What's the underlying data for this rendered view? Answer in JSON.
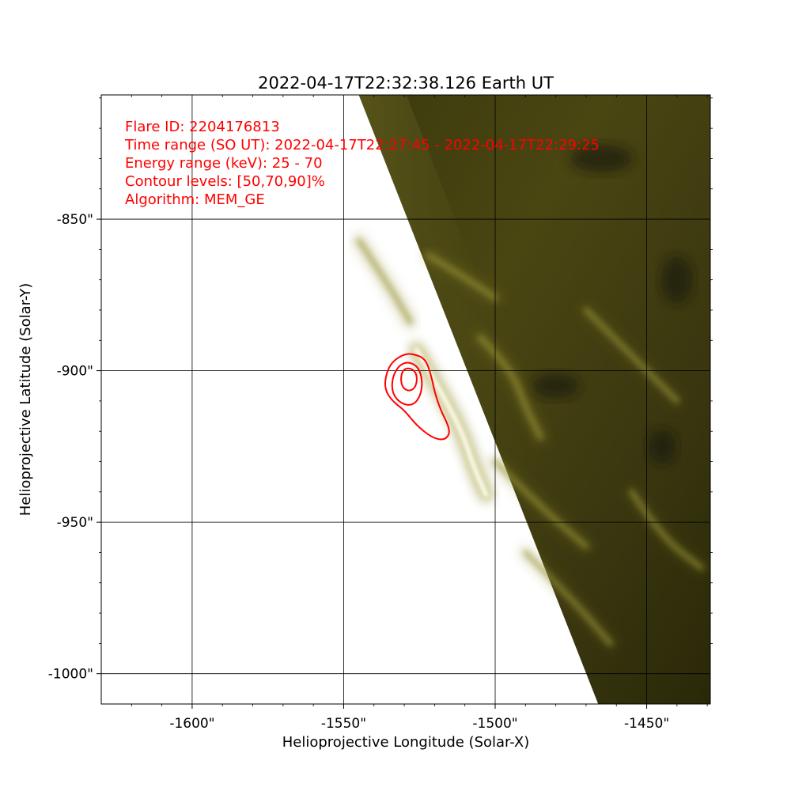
{
  "chart_data": {
    "type": "heatmap",
    "title": "2022-04-17T22:32:38.126   Earth UT",
    "xlabel": "Helioprojective Longitude (Solar-X)",
    "ylabel": "Helioprojective Latitude (Solar-Y)",
    "xlim": [
      -1630,
      -1429
    ],
    "ylim": [
      -1010,
      -809
    ],
    "x_ticks": [
      {
        "value": -1600,
        "label": "-1600\""
      },
      {
        "value": -1550,
        "label": "-1550\""
      },
      {
        "value": -1500,
        "label": "-1500\""
      },
      {
        "value": -1450,
        "label": "-1450\""
      }
    ],
    "y_ticks": [
      {
        "value": -850,
        "label": "-850\""
      },
      {
        "value": -900,
        "label": "-900\""
      },
      {
        "value": -950,
        "label": "-950\""
      },
      {
        "value": -1000,
        "label": "-1000\""
      }
    ],
    "grid": true,
    "colors": {
      "map_dark": "#1e1c06",
      "map_mid": "#6b6420",
      "map_bright": "#fffff0",
      "contour": "#ff0000",
      "annotation": "#ff0000",
      "grid": "#000000"
    },
    "limb_edge": [
      {
        "x": -1545.0,
        "y": -809
      },
      {
        "x": -1466.0,
        "y": -1010
      }
    ],
    "contours": [
      {
        "level": 50,
        "points": [
          [
            -1527,
            -894.5
          ],
          [
            -1523,
            -896
          ],
          [
            -1521,
            -902
          ],
          [
            -1520,
            -907
          ],
          [
            -1518,
            -913
          ],
          [
            -1515.5,
            -918
          ],
          [
            -1515,
            -921
          ],
          [
            -1517,
            -923
          ],
          [
            -1521,
            -922
          ],
          [
            -1526,
            -918
          ],
          [
            -1530,
            -913
          ],
          [
            -1534,
            -910
          ],
          [
            -1536.5,
            -906
          ],
          [
            -1536,
            -901
          ],
          [
            -1534,
            -897
          ],
          [
            -1530,
            -894.5
          ]
        ]
      },
      {
        "level": 70,
        "points": [
          [
            -1529,
            -897
          ],
          [
            -1525.5,
            -898.5
          ],
          [
            -1524,
            -903
          ],
          [
            -1524.5,
            -908
          ],
          [
            -1527,
            -911.5
          ],
          [
            -1531,
            -911
          ],
          [
            -1534,
            -907.5
          ],
          [
            -1534,
            -902.5
          ],
          [
            -1532,
            -898.5
          ]
        ]
      },
      {
        "level": 90,
        "points": [
          [
            -1528.5,
            -899
          ],
          [
            -1526.3,
            -900.2
          ],
          [
            -1525.7,
            -903
          ],
          [
            -1526.5,
            -905.8
          ],
          [
            -1528.5,
            -906.8
          ],
          [
            -1530.6,
            -905.6
          ],
          [
            -1531.2,
            -902.6
          ],
          [
            -1530.5,
            -899.8
          ]
        ]
      }
    ],
    "bright_loops": [
      {
        "intensity": 1.0,
        "points": [
          [
            -1526,
            -893
          ],
          [
            -1519,
            -905
          ],
          [
            -1511,
            -920
          ],
          [
            -1507,
            -932
          ],
          [
            -1503,
            -941
          ]
        ]
      },
      {
        "intensity": 0.55,
        "points": [
          [
            -1505,
            -889
          ],
          [
            -1495,
            -899
          ],
          [
            -1490,
            -912
          ],
          [
            -1485,
            -922
          ]
        ]
      },
      {
        "intensity": 0.45,
        "points": [
          [
            -1545,
            -857
          ],
          [
            -1535,
            -872
          ],
          [
            -1528,
            -884
          ]
        ]
      },
      {
        "intensity": 0.45,
        "points": [
          [
            -1522,
            -862
          ],
          [
            -1512,
            -868
          ],
          [
            -1500,
            -876
          ]
        ]
      },
      {
        "intensity": 0.4,
        "points": [
          [
            -1500,
            -930
          ],
          [
            -1485,
            -945
          ],
          [
            -1470,
            -958
          ]
        ]
      },
      {
        "intensity": 0.35,
        "points": [
          [
            -1490,
            -960
          ],
          [
            -1475,
            -975
          ],
          [
            -1462,
            -990
          ]
        ]
      },
      {
        "intensity": 0.3,
        "points": [
          [
            -1470,
            -880
          ],
          [
            -1455,
            -895
          ],
          [
            -1440,
            -910
          ]
        ]
      },
      {
        "intensity": 0.3,
        "points": [
          [
            -1455,
            -940
          ],
          [
            -1445,
            -955
          ],
          [
            -1432,
            -965
          ]
        ]
      }
    ]
  },
  "annotation": {
    "lines": [
      "Flare ID: 2204176813",
      "Time range (SO UT): 2022-04-17T22:27:45 - 2022-04-17T22:29:25",
      "Energy range (keV): 25 - 70",
      "Contour levels: [50,70,90]%",
      "Algorithm: MEM_GE"
    ]
  }
}
